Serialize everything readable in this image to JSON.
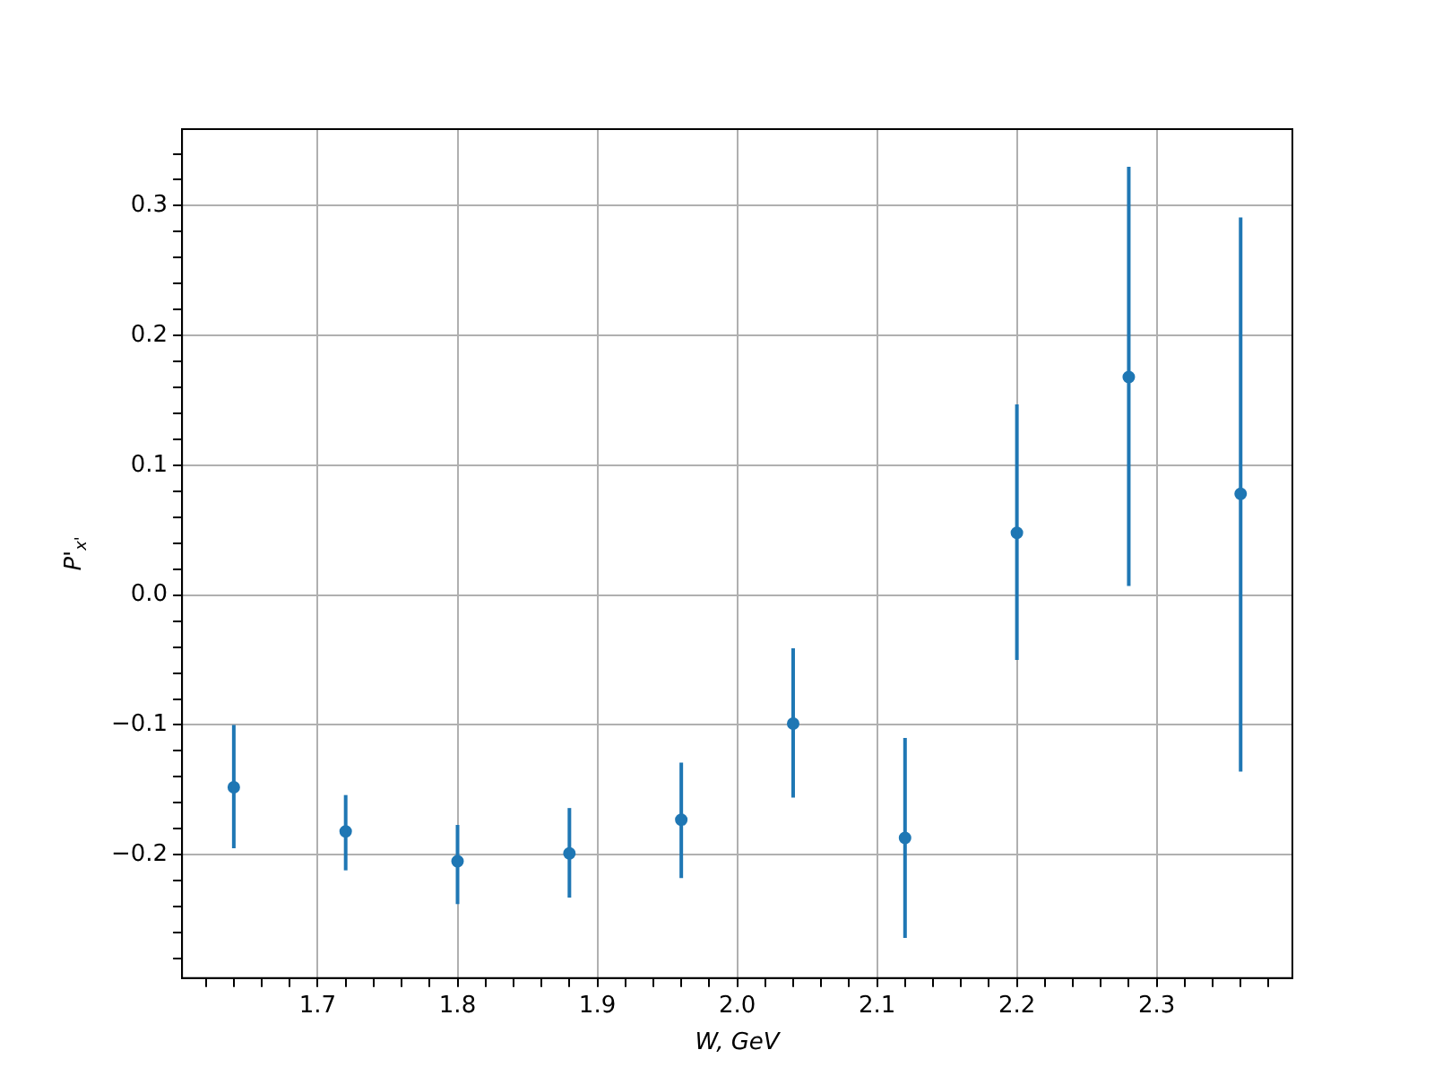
{
  "chart_data": {
    "type": "scatter",
    "xlabel": "W, GeV",
    "ylabel": "P'$_{x'}$",
    "x": [
      1.64,
      1.72,
      1.8,
      1.88,
      1.96,
      2.04,
      2.12,
      2.2,
      2.28,
      2.36
    ],
    "series": [
      {
        "color": "#1f77b4",
        "values": [
          -0.148,
          -0.182,
          -0.205,
          -0.199,
          -0.173,
          -0.099,
          -0.187,
          0.048,
          0.168,
          0.078
        ],
        "errors": [
          [
            -0.195,
            -0.1
          ],
          [
            -0.212,
            -0.154
          ],
          [
            -0.238,
            -0.177
          ],
          [
            -0.233,
            -0.164
          ],
          [
            -0.218,
            -0.129
          ],
          [
            -0.156,
            -0.041
          ],
          [
            -0.264,
            -0.11
          ],
          [
            -0.05,
            0.147
          ],
          [
            0.007,
            0.33
          ],
          [
            -0.136,
            0.291
          ]
        ]
      }
    ],
    "xlim": [
      1.603,
      2.397
    ],
    "ylim": [
      -0.295,
      0.359
    ],
    "xticks": [
      {
        "value": 1.62,
        "label": null
      },
      {
        "value": 1.64,
        "label": null
      },
      {
        "value": 1.66,
        "label": null
      },
      {
        "value": 1.68,
        "label": null
      },
      {
        "value": 1.7,
        "label": "1.7"
      },
      {
        "value": 1.72,
        "label": null
      },
      {
        "value": 1.74,
        "label": null
      },
      {
        "value": 1.76,
        "label": null
      },
      {
        "value": 1.78,
        "label": null
      },
      {
        "value": 1.8,
        "label": "1.8"
      },
      {
        "value": 1.82,
        "label": null
      },
      {
        "value": 1.84,
        "label": null
      },
      {
        "value": 1.86,
        "label": null
      },
      {
        "value": 1.88,
        "label": null
      },
      {
        "value": 1.9,
        "label": "1.9"
      },
      {
        "value": 1.92,
        "label": null
      },
      {
        "value": 1.94,
        "label": null
      },
      {
        "value": 1.96,
        "label": null
      },
      {
        "value": 1.98,
        "label": null
      },
      {
        "value": 2.0,
        "label": "2.0"
      },
      {
        "value": 2.02,
        "label": null
      },
      {
        "value": 2.04,
        "label": null
      },
      {
        "value": 2.06,
        "label": null
      },
      {
        "value": 2.08,
        "label": null
      },
      {
        "value": 2.1,
        "label": "2.1"
      },
      {
        "value": 2.12,
        "label": null
      },
      {
        "value": 2.14,
        "label": null
      },
      {
        "value": 2.16,
        "label": null
      },
      {
        "value": 2.18,
        "label": null
      },
      {
        "value": 2.2,
        "label": "2.2"
      },
      {
        "value": 2.22,
        "label": null
      },
      {
        "value": 2.24,
        "label": null
      },
      {
        "value": 2.26,
        "label": null
      },
      {
        "value": 2.28,
        "label": null
      },
      {
        "value": 2.3,
        "label": "2.3"
      },
      {
        "value": 2.32,
        "label": null
      },
      {
        "value": 2.34,
        "label": null
      },
      {
        "value": 2.36,
        "label": null
      },
      {
        "value": 2.38,
        "label": null
      }
    ],
    "yticks": [
      {
        "value": -0.28,
        "label": null
      },
      {
        "value": -0.26,
        "label": null
      },
      {
        "value": -0.24,
        "label": null
      },
      {
        "value": -0.22,
        "label": null
      },
      {
        "value": -0.2,
        "label": "−0.2"
      },
      {
        "value": -0.18,
        "label": null
      },
      {
        "value": -0.16,
        "label": null
      },
      {
        "value": -0.14,
        "label": null
      },
      {
        "value": -0.12,
        "label": null
      },
      {
        "value": -0.1,
        "label": "−0.1"
      },
      {
        "value": -0.08,
        "label": null
      },
      {
        "value": -0.06,
        "label": null
      },
      {
        "value": -0.04,
        "label": null
      },
      {
        "value": -0.02,
        "label": null
      },
      {
        "value": 0,
        "label": "0.0"
      },
      {
        "value": 0.02,
        "label": null
      },
      {
        "value": 0.04,
        "label": null
      },
      {
        "value": 0.06,
        "label": null
      },
      {
        "value": 0.08,
        "label": null
      },
      {
        "value": 0.1,
        "label": "0.1"
      },
      {
        "value": 0.12,
        "label": null
      },
      {
        "value": 0.14,
        "label": null
      },
      {
        "value": 0.16,
        "label": null
      },
      {
        "value": 0.18,
        "label": null
      },
      {
        "value": 0.2,
        "label": "0.2"
      },
      {
        "value": 0.22,
        "label": null
      },
      {
        "value": 0.24,
        "label": null
      },
      {
        "value": 0.26,
        "label": null
      },
      {
        "value": 0.28,
        "label": null
      },
      {
        "value": 0.3,
        "label": "0.3"
      },
      {
        "value": 0.32,
        "label": null
      },
      {
        "value": 0.34,
        "label": null
      }
    ],
    "grid": true,
    "marker": "circle"
  }
}
